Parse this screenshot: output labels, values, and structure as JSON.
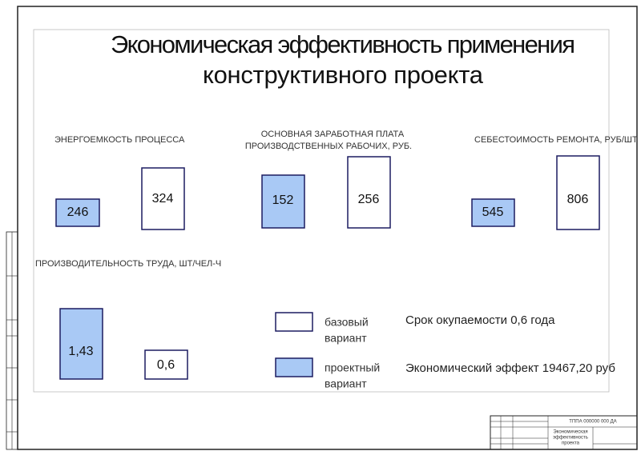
{
  "title": [
    "Экономическая эффективность применения",
    "конструктивного проекта"
  ],
  "panels": [
    {
      "label": [
        "ЭНЕРГОЕМКОСТЬ ПРОЦЕССА"
      ],
      "project": "246",
      "base": "324"
    },
    {
      "label": [
        "ОСНОВНАЯ ЗАРАБОТНАЯ ПЛАТА",
        "ПРОИЗВОДСТВЕННЫХ РАБОЧИХ, РУБ."
      ],
      "project": "152",
      "base": "256"
    },
    {
      "label": [
        "СЕБЕСТОИМОСТЬ РЕМОНТА, РУБ/ШТ"
      ],
      "project": "545",
      "base": "806"
    },
    {
      "label": [
        "ПРОИЗВОДИТЕЛЬНОСТЬ ТРУДА, ШТ/ЧЕЛ-Ч"
      ],
      "project": "1,43",
      "base": "0,6"
    }
  ],
  "legend": {
    "base": [
      "базовый",
      "вариант"
    ],
    "project": [
      "проектный",
      "вариант"
    ]
  },
  "notes": [
    "Срок окупаемости 0,6 года",
    "Экономический эффект 19467,20 руб"
  ],
  "stamp": {
    "code": "ТППА 000000 000 ДА",
    "name": [
      "Экономическая",
      "эффективность",
      "проекта"
    ]
  }
}
